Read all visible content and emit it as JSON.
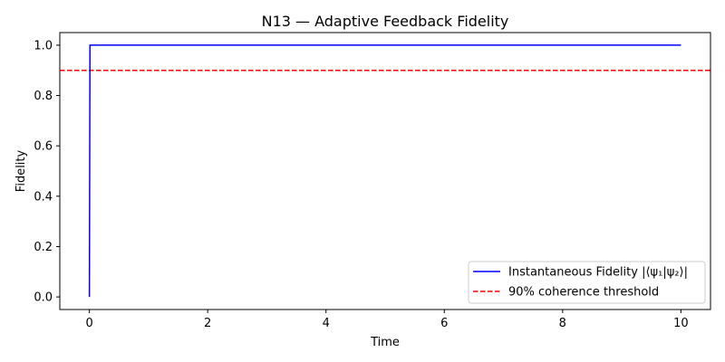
{
  "chart_data": {
    "type": "line",
    "title": "N13 — Adaptive Feedback Fidelity",
    "xlabel": "Time",
    "ylabel": "Fidelity",
    "xlim": [
      -0.5,
      10.5
    ],
    "ylim": [
      -0.05,
      1.05
    ],
    "xticks": [
      0,
      2,
      4,
      6,
      8,
      10
    ],
    "xtick_labels": [
      "0",
      "2",
      "4",
      "6",
      "8",
      "10"
    ],
    "yticks": [
      0.0,
      0.2,
      0.4,
      0.6,
      0.8,
      1.0
    ],
    "ytick_labels": [
      "0.0",
      "0.2",
      "0.4",
      "0.6",
      "0.8",
      "1.0"
    ],
    "grid": false,
    "legend_position": "lower-right",
    "series": [
      {
        "name": "Instantaneous Fidelity |⟨ψ₁|ψ₂⟩|",
        "color": "#0000ff",
        "style": "solid",
        "x": [
          0,
          0.01,
          0.02,
          10
        ],
        "y": [
          0.0,
          1.0,
          1.0,
          1.0
        ]
      }
    ],
    "reference_lines": [
      {
        "name": "90% coherence threshold",
        "orientation": "horizontal",
        "y": 0.9,
        "color": "#ff0000",
        "style": "dashed"
      }
    ]
  }
}
